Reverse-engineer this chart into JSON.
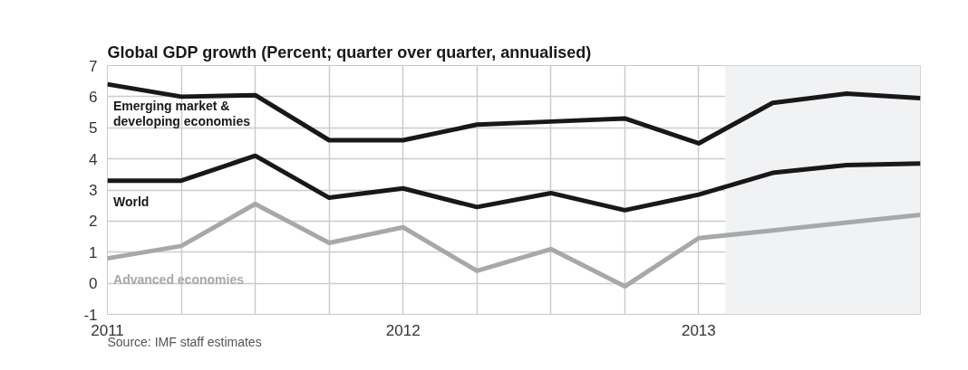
{
  "chart_data": {
    "type": "line",
    "title": "Global GDP growth (Percent; quarter over quarter, annualised)",
    "x": [
      2011,
      2011.25,
      2011.5,
      2011.75,
      2012,
      2012.25,
      2012.5,
      2012.75,
      2013,
      2013.25,
      2013.5,
      2013.75
    ],
    "series": [
      {
        "name": "Emerging market &\ndeveloping economies",
        "color": "#1a1718",
        "values": [
          6.4,
          6.0,
          6.05,
          4.6,
          4.6,
          5.1,
          5.2,
          5.3,
          4.5,
          5.8,
          6.1,
          5.95
        ]
      },
      {
        "name": "World",
        "color": "#1a1718",
        "values": [
          3.3,
          3.3,
          4.1,
          2.75,
          3.05,
          2.45,
          2.9,
          2.35,
          2.85,
          3.55,
          3.8,
          3.85
        ]
      },
      {
        "name": "Advanced economies",
        "color": "#a7a8aa",
        "values": [
          0.8,
          1.2,
          2.55,
          1.3,
          1.8,
          0.4,
          1.1,
          -0.1,
          1.45,
          1.7,
          1.95,
          2.2
        ]
      }
    ],
    "xlim": [
      2011,
      2013.75
    ],
    "xticks": [
      2011,
      {
        "value": 2011.25,
        "label": null
      },
      {
        "value": 2011.5,
        "label": null
      },
      {
        "value": 2011.75,
        "label": null
      },
      2012,
      {
        "value": 2012.25,
        "label": null
      },
      {
        "value": 2012.5,
        "label": null
      },
      {
        "value": 2012.75,
        "label": null
      },
      2013,
      {
        "value": 2013.25,
        "label": null
      },
      {
        "value": 2013.5,
        "label": null
      },
      {
        "value": 2013.75,
        "label": null
      }
    ],
    "ylim": [
      -1,
      7
    ],
    "yticks": [
      -1,
      0,
      1,
      2,
      3,
      4,
      5,
      6,
      7
    ],
    "bands": [
      {
        "axis": "x",
        "from": 2013.09,
        "to": 2013.75,
        "label": null,
        "color": "#f1f2f4"
      }
    ],
    "grid": true,
    "marker": "none",
    "line_style": "solid",
    "annotations": [
      "Source: IMF staff estimates"
    ]
  }
}
